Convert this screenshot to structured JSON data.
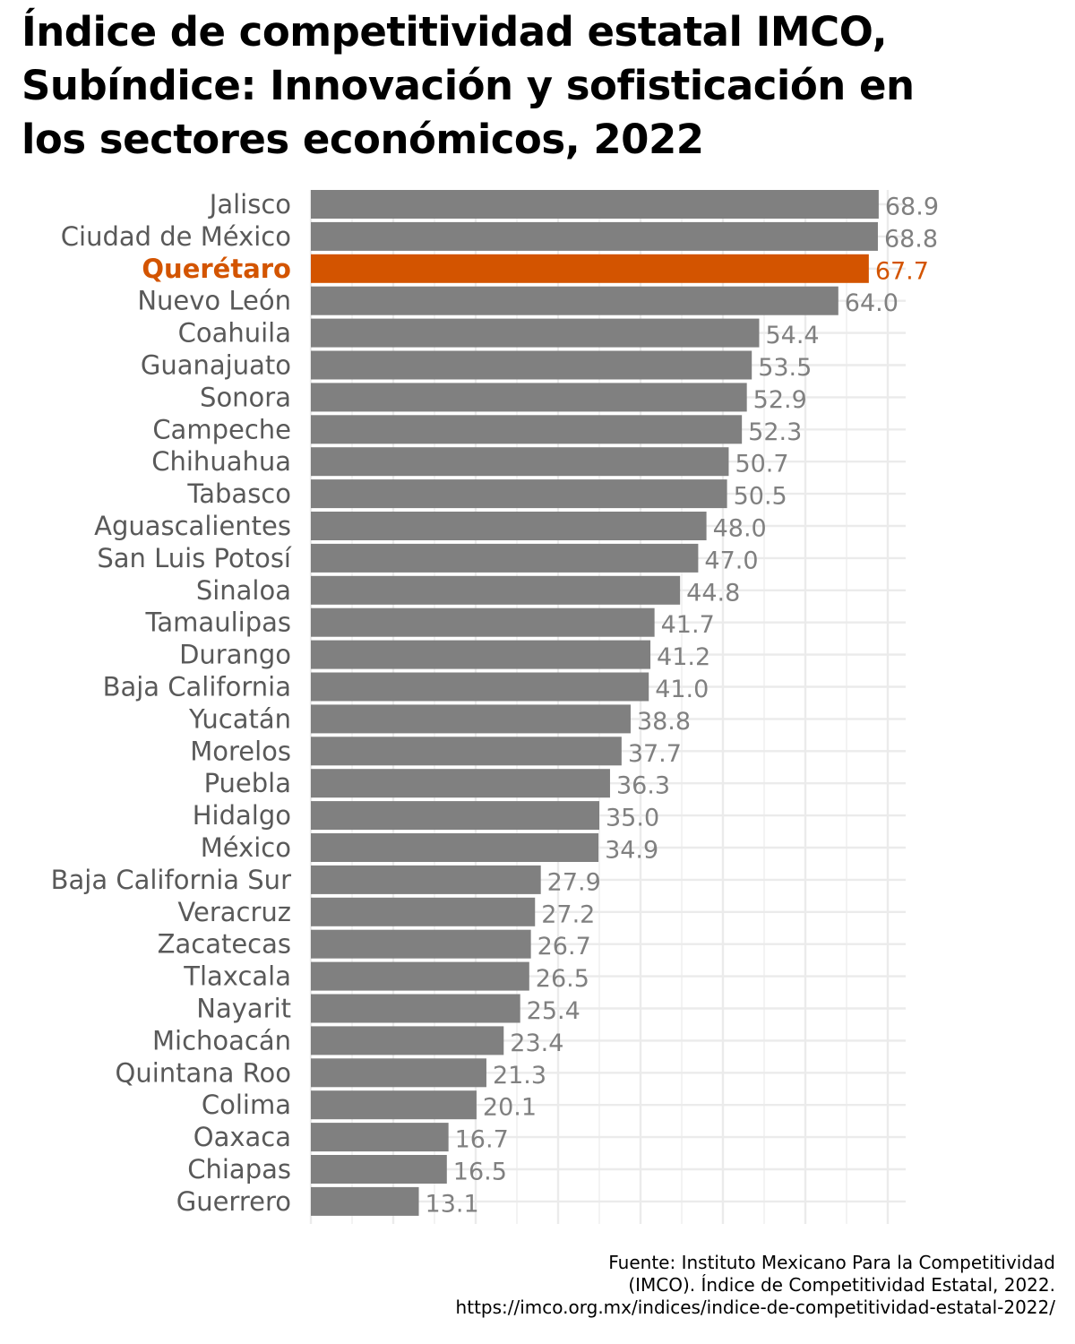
{
  "title_lines": [
    "Índice de competitividad estatal IMCO,",
    "Subíndice: Innovación y sofisticación en",
    "los sectores económicos, 2022"
  ],
  "caption_lines": [
    "Fuente: Instituto Mexicano Para la Competitividad",
    "(IMCO). Índice de Competitividad Estatal, 2022.",
    "https://imco.org.mx/indices/indice-de-competitividad-estatal-2022/"
  ],
  "colors": {
    "bar": "#808080",
    "highlight": "#d35400",
    "label": "#595959",
    "value_label": "#808080",
    "grid": "#ebebeb"
  },
  "chart_data": {
    "type": "bar",
    "orientation": "horizontal",
    "title": "Índice de competitividad estatal IMCO, Subíndice: Innovación y sofisticación en los sectores económicos, 2022",
    "xlabel": "",
    "ylabel": "",
    "xlim": [
      0,
      70
    ],
    "grid": true,
    "highlight": "Querétaro",
    "categories": [
      "Jalisco",
      "Ciudad de México",
      "Querétaro",
      "Nuevo León",
      "Coahuila",
      "Guanajuato",
      "Sonora",
      "Campeche",
      "Chihuahua",
      "Tabasco",
      "Aguascalientes",
      "San Luis Potosí",
      "Sinaloa",
      "Tamaulipas",
      "Durango",
      "Baja California",
      "Yucatán",
      "Morelos",
      "Puebla",
      "Hidalgo",
      "México",
      "Baja California Sur",
      "Veracruz",
      "Zacatecas",
      "Tlaxcala",
      "Nayarit",
      "Michoacán",
      "Quintana Roo",
      "Colima",
      "Oaxaca",
      "Chiapas",
      "Guerrero"
    ],
    "values": [
      68.9,
      68.8,
      67.7,
      64.0,
      54.4,
      53.5,
      52.9,
      52.3,
      50.7,
      50.5,
      48.0,
      47.0,
      44.8,
      41.7,
      41.2,
      41.0,
      38.8,
      37.7,
      36.3,
      35.0,
      34.9,
      27.9,
      27.2,
      26.7,
      26.5,
      25.4,
      23.4,
      21.3,
      20.1,
      16.7,
      16.5,
      13.1
    ],
    "value_labels": [
      "68.9",
      "68.8",
      "67.7",
      "64.0",
      "54.4",
      "53.5",
      "52.9",
      "52.3",
      "50.7",
      "50.5",
      "48.0",
      "47.0",
      "44.8",
      "41.7",
      "41.2",
      "41.0",
      "38.8",
      "37.7",
      "36.3",
      "35.0",
      "34.9",
      "27.9",
      "27.2",
      "26.7",
      "26.5",
      "25.4",
      "23.4",
      "21.3",
      "20.1",
      "16.7",
      "16.5",
      "13.1"
    ]
  }
}
